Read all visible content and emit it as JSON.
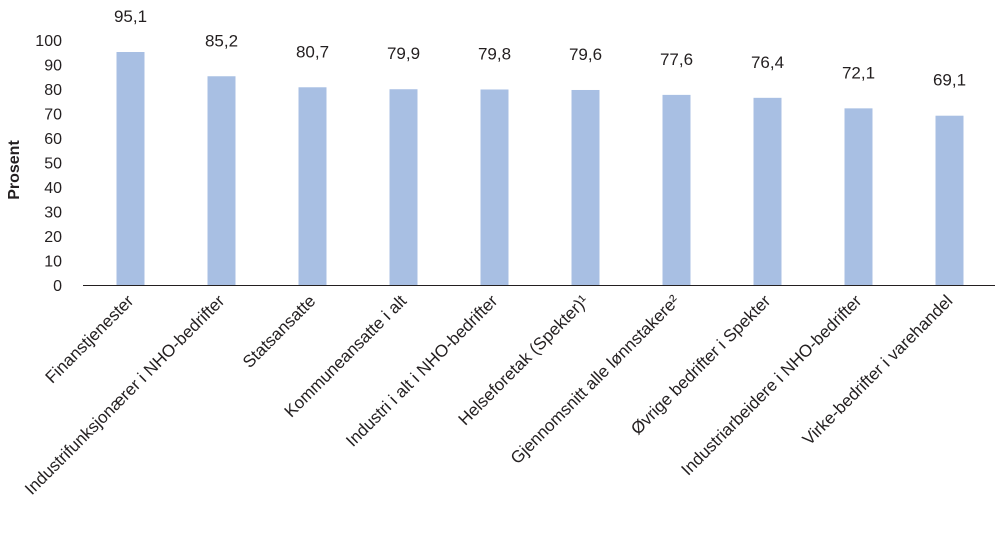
{
  "chart_data": {
    "type": "bar",
    "ylabel": "Prosent",
    "ylim": [
      0,
      100
    ],
    "yticks": [
      0,
      10,
      20,
      30,
      40,
      50,
      60,
      70,
      80,
      90,
      100
    ],
    "grid": false,
    "categories": [
      "Finanstjenester",
      "Industrifunksjonærer i NHO-bedrifter",
      "Statsansatte",
      "Kommuneansatte i alt",
      "Industri i alt i NHO-bedrifter",
      "Helseforetak (Spekter)¹",
      "Gjennomsnitt alle lønnstakere²",
      "Øvrige bedrifter i Spekter",
      "Industriarbeidere i NHO-bedrifter",
      "Virke-bedrifter i varehandel"
    ],
    "values": [
      95.1,
      85.2,
      80.7,
      79.9,
      79.8,
      79.6,
      77.6,
      76.4,
      72.1,
      69.1
    ],
    "value_labels": [
      "95,1",
      "85,2",
      "80,7",
      "79,9",
      "79,8",
      "79,6",
      "77,6",
      "76,4",
      "72,1",
      "69,1"
    ],
    "bar_color": "#a8bfe3",
    "axis_color": "#231f20"
  }
}
